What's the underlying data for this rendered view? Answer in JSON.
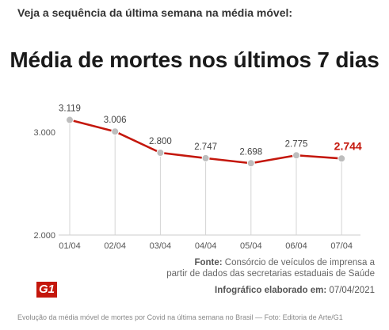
{
  "intro_text": "Veja a sequência da última semana na média móvel:",
  "source_label": "Fonte:",
  "source_text_1": "Consórcio de veículos de imprensa a",
  "source_text_2": "partir de dados das secretarias estaduais de Saúde",
  "credit_label": "Infográfico elaborado em:",
  "credit_date": "07/04/2021",
  "logo_text": "G1",
  "caption": "Evolução da média móvel de mortes por Covid na última semana no Brasil — Foto: Editoria de Arte/G1",
  "colors": {
    "line": "#c4170c",
    "point": "#bdbdbd",
    "highlight": "#c4170c"
  },
  "chart_data": {
    "type": "line",
    "title": "Média de mortes nos últimos 7 dias",
    "categories": [
      "01/04",
      "02/04",
      "03/04",
      "04/04",
      "05/04",
      "06/04",
      "07/04"
    ],
    "values": [
      3119,
      3006,
      2800,
      2747,
      2698,
      2775,
      2744
    ],
    "value_labels": [
      "3.119",
      "3.006",
      "2.800",
      "2.747",
      "2.698",
      "2.775",
      "2.744"
    ],
    "yticks": [
      2000,
      3000
    ],
    "ytick_labels": [
      "2.000",
      "3.000"
    ],
    "ylim": [
      2000,
      3000
    ],
    "highlight_index": 6
  }
}
